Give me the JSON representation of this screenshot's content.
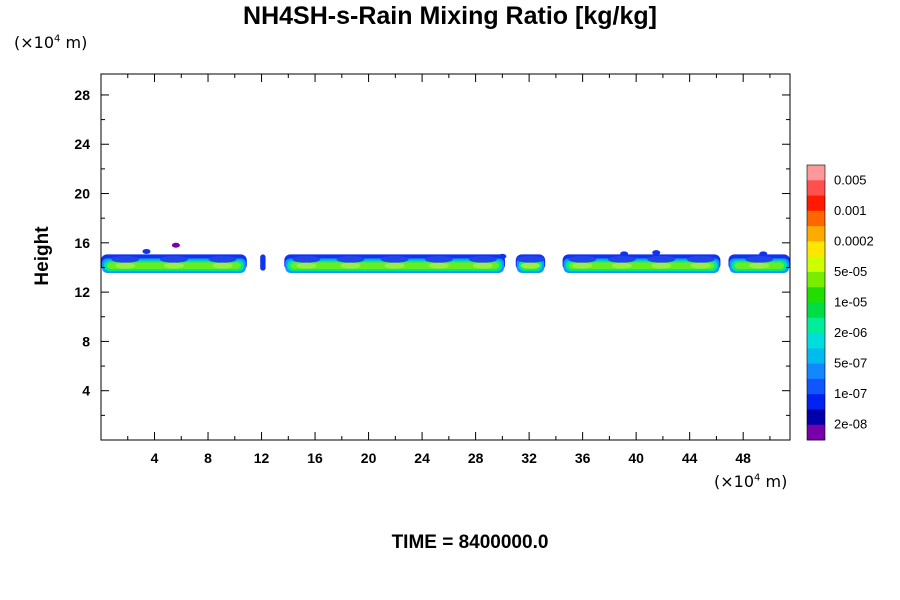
{
  "title": "NH4SH-s-Rain Mixing Ratio [kg/kg]",
  "x_unit": {
    "prefix": "(×10",
    "exp": "4",
    "suffix": " m)"
  },
  "y_unit": {
    "prefix": "(×10",
    "exp": "4",
    "suffix": " m)"
  },
  "ylabel": "Height",
  "time_label": "TIME = 8400000.0",
  "chart_data": {
    "type": "heatmap",
    "title": "NH4SH-s-Rain Mixing Ratio [kg/kg]",
    "xlabel": "",
    "ylabel": "Height",
    "xlim": [
      0,
      51.5
    ],
    "ylim": [
      0,
      29.7
    ],
    "x_ticks": [
      4,
      8,
      12,
      16,
      20,
      24,
      28,
      32,
      36,
      40,
      44,
      48
    ],
    "y_ticks": [
      4,
      8,
      12,
      16,
      20,
      24,
      28
    ],
    "colorbar": {
      "labels": [
        "0.005",
        "0.001",
        "0.0002",
        "5e-05",
        "1e-05",
        "2e-06",
        "5e-07",
        "1e-07",
        "2e-08"
      ],
      "colors": [
        "#ff9999",
        "#ff5050",
        "#ff1a00",
        "#ff6600",
        "#ffaa00",
        "#ffe600",
        "#ccff00",
        "#77ee00",
        "#22dd00",
        "#00dd44",
        "#00ee99",
        "#00dddd",
        "#00bbee",
        "#1188ff",
        "#1155ff",
        "#0022ee",
        "#0000aa",
        "#7700aa"
      ]
    },
    "band": {
      "height_range": [
        13.4,
        15.4
      ],
      "core_height_range": [
        13.8,
        14.5
      ],
      "gaps_x": [
        [
          10.9,
          11.9
        ],
        [
          12.3,
          13.7
        ],
        [
          30.2,
          31.0
        ],
        [
          33.2,
          34.5
        ],
        [
          46.3,
          46.9
        ]
      ],
      "segments": [
        {
          "x0": 0.0,
          "x1": 10.9,
          "level": "moderate"
        },
        {
          "x0": 11.9,
          "x1": 12.3,
          "level": "low"
        },
        {
          "x0": 13.7,
          "x1": 30.2,
          "level": "moderate"
        },
        {
          "x0": 31.0,
          "x1": 33.2,
          "level": "moderate"
        },
        {
          "x0": 34.5,
          "x1": 46.3,
          "level": "moderate"
        },
        {
          "x0": 46.9,
          "x1": 51.5,
          "level": "moderate"
        }
      ]
    }
  }
}
